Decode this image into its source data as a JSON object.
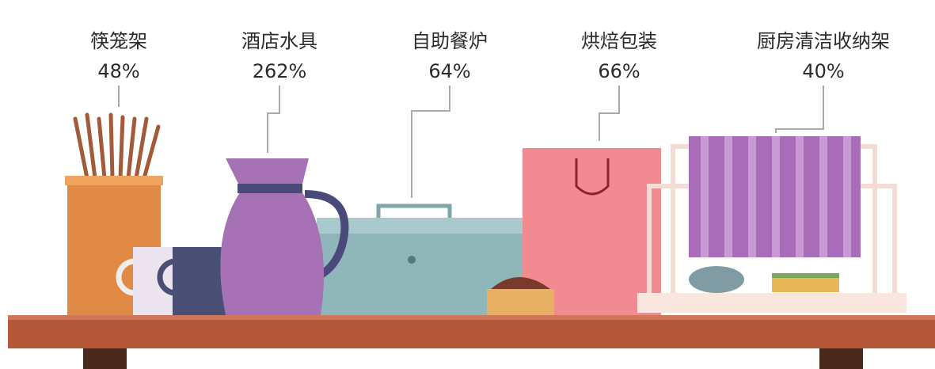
{
  "items": [
    {
      "name": "筷笼架",
      "share": "48%"
    },
    {
      "name": "酒店水具",
      "share": "262%"
    },
    {
      "name": "自助餐炉",
      "share": "64%"
    },
    {
      "name": "烘焙包装",
      "share": "66%"
    },
    {
      "name": "厨房清洁收纳架",
      "share": "40%"
    }
  ]
}
